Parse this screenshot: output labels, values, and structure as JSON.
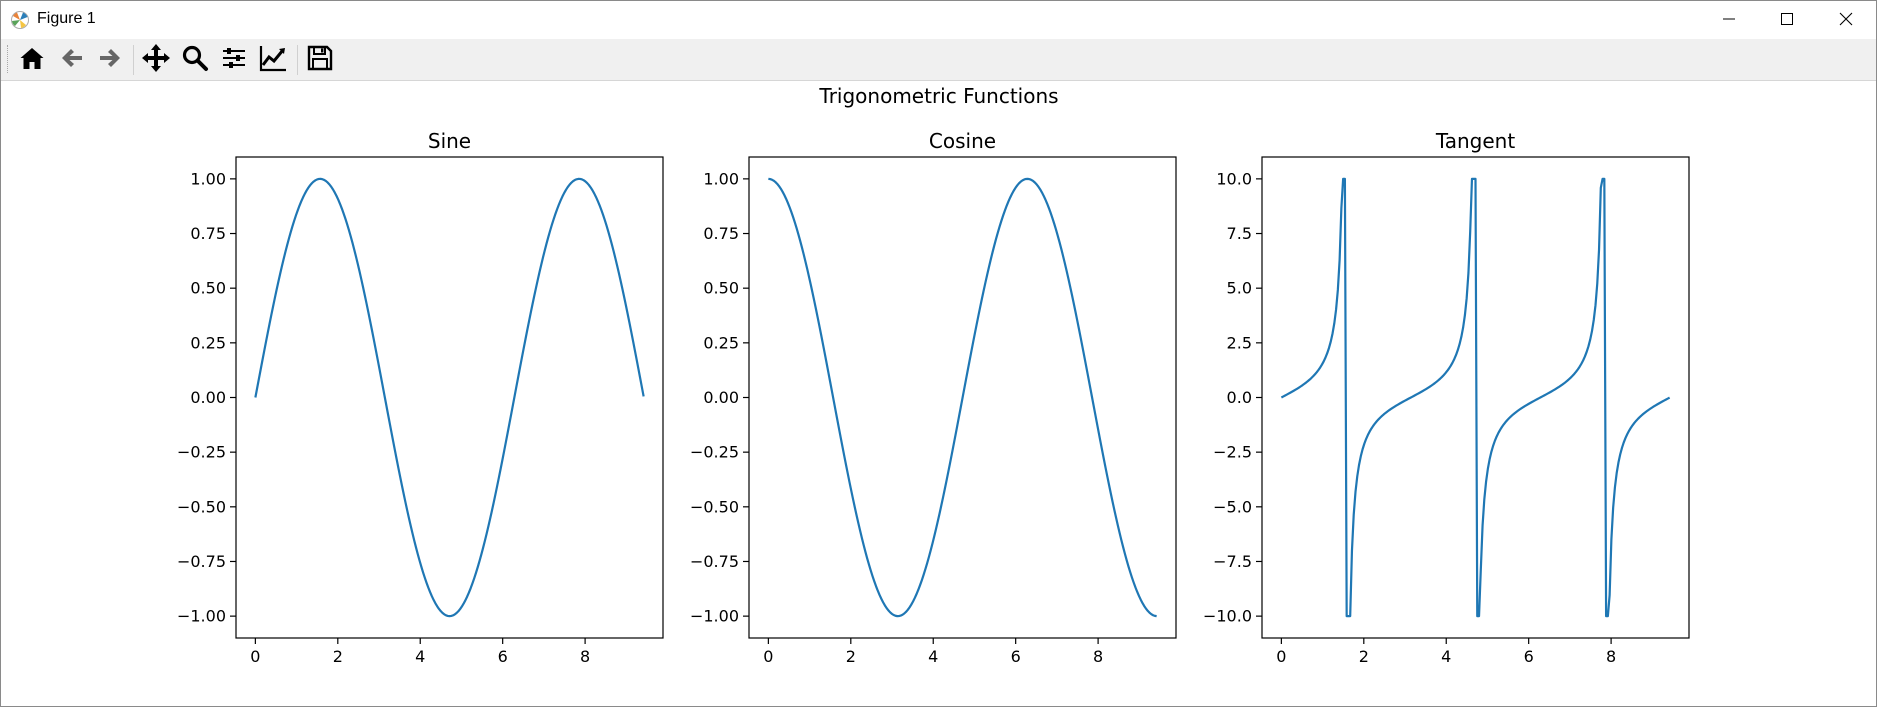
{
  "window": {
    "title": "Figure 1",
    "icon": "matplotlib-logo-icon",
    "controls": [
      "minimize-icon",
      "maximize-icon",
      "close-icon"
    ]
  },
  "toolbar": {
    "buttons": [
      {
        "icon": "home-icon",
        "tooltip": "Home"
      },
      {
        "icon": "back-arrow-icon",
        "tooltip": "Back"
      },
      {
        "icon": "forward-arrow-icon",
        "tooltip": "Forward"
      },
      {
        "icon": "pan-move-icon",
        "tooltip": "Pan"
      },
      {
        "icon": "zoom-magnifier-icon",
        "tooltip": "Zoom"
      },
      {
        "icon": "subplots-configure-icon",
        "tooltip": "Subplots"
      },
      {
        "icon": "edit-axes-icon",
        "tooltip": "Customize"
      },
      {
        "icon": "save-floppy-icon",
        "tooltip": "Save"
      }
    ]
  },
  "figure": {
    "suptitle": "Trigonometric Functions",
    "line_color": "#1f77b4"
  },
  "chart_data": [
    {
      "type": "line",
      "title": "Sine",
      "function": "sin(x)",
      "x_range": [
        0,
        9.42
      ],
      "xlim": [
        -0.47,
        9.89
      ],
      "ylim": [
        -1.1,
        1.1
      ],
      "x_ticks": [
        0,
        2,
        4,
        6,
        8
      ],
      "x_tick_labels": [
        "0",
        "2",
        "4",
        "6",
        "8"
      ],
      "y_ticks": [
        1.0,
        0.75,
        0.5,
        0.25,
        0.0,
        -0.25,
        -0.5,
        -0.75,
        -1.0
      ],
      "y_tick_labels": [
        "1.00",
        "0.75",
        "0.50",
        "0.25",
        "0.00",
        "−0.25",
        "−0.50",
        "−0.75",
        "−1.00"
      ],
      "series": [
        {
          "points": [
            [
              0,
              0
            ],
            [
              1.57,
              1
            ],
            [
              3.14,
              0
            ],
            [
              4.71,
              -1
            ],
            [
              6.28,
              0
            ],
            [
              7.85,
              1
            ],
            [
              9.42,
              0
            ]
          ]
        }
      ]
    },
    {
      "type": "line",
      "title": "Cosine",
      "function": "cos(x)",
      "x_range": [
        0,
        9.42
      ],
      "xlim": [
        -0.47,
        9.89
      ],
      "ylim": [
        -1.1,
        1.1
      ],
      "x_ticks": [
        0,
        2,
        4,
        6,
        8
      ],
      "x_tick_labels": [
        "0",
        "2",
        "4",
        "6",
        "8"
      ],
      "y_ticks": [
        1.0,
        0.75,
        0.5,
        0.25,
        0.0,
        -0.25,
        -0.5,
        -0.75,
        -1.0
      ],
      "y_tick_labels": [
        "1.00",
        "0.75",
        "0.50",
        "0.25",
        "0.00",
        "−0.25",
        "−0.50",
        "−0.75",
        "−1.00"
      ],
      "series": [
        {
          "points": [
            [
              0,
              1
            ],
            [
              1.57,
              0
            ],
            [
              3.14,
              -1
            ],
            [
              4.71,
              0
            ],
            [
              6.28,
              1
            ],
            [
              7.85,
              0
            ],
            [
              9.42,
              -1
            ]
          ]
        }
      ]
    },
    {
      "type": "line",
      "title": "Tangent",
      "function": "clip(tan(x), -10, 10)",
      "x_range": [
        0,
        9.42
      ],
      "xlim": [
        -0.47,
        9.89
      ],
      "ylim": [
        -11,
        11
      ],
      "x_ticks": [
        0,
        2,
        4,
        6,
        8
      ],
      "x_tick_labels": [
        "0",
        "2",
        "4",
        "6",
        "8"
      ],
      "y_ticks": [
        10,
        7.5,
        5,
        2.5,
        0,
        -2.5,
        -5,
        -7.5,
        -10
      ],
      "y_tick_labels": [
        "10.0",
        "7.5",
        "5.0",
        "2.5",
        "0.0",
        "−2.5",
        "−5.0",
        "−7.5",
        "−10.0"
      ],
      "series": [
        {
          "points": [
            [
              0,
              0
            ],
            [
              0.79,
              1
            ],
            [
              1.47,
              10
            ],
            [
              1.57,
              10
            ],
            [
              1.67,
              -10
            ],
            [
              2.36,
              -1
            ],
            [
              3.14,
              0
            ],
            [
              3.93,
              1
            ],
            [
              4.61,
              10
            ],
            [
              4.71,
              10
            ],
            [
              4.81,
              -10
            ],
            [
              5.5,
              -1
            ],
            [
              6.28,
              0
            ],
            [
              7.07,
              1
            ],
            [
              7.75,
              10
            ],
            [
              7.85,
              10
            ],
            [
              7.95,
              -10
            ],
            [
              8.64,
              -1
            ],
            [
              9.42,
              0
            ]
          ]
        }
      ]
    }
  ]
}
